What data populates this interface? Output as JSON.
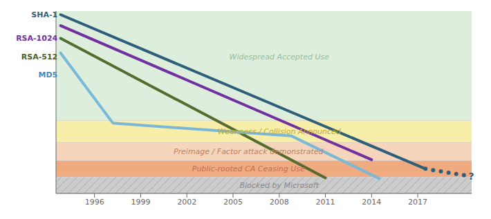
{
  "chart_data": {
    "type": "line",
    "xlim": [
      1993.5,
      2020.5
    ],
    "xticks": [
      1996,
      1999,
      2002,
      2005,
      2008,
      2011,
      2014,
      2017
    ],
    "ylim": [
      0,
      10.0
    ],
    "yticks": [],
    "tick_labels": "x",
    "grid": false,
    "bands": [
      {
        "label": "Widespread Accepted Use",
        "ymin": 4.0,
        "ymax": 10.0,
        "color": "#ddeedd",
        "x": 2008,
        "y": 7.5,
        "label_color": "#99bb99",
        "hatch": false
      },
      {
        "label": "Weakness / Collision Announced",
        "ymin": 2.8,
        "ymax": 4.0,
        "color": "#f7eeaa",
        "x": 2008,
        "y": 3.4,
        "label_color": "#c0a830",
        "hatch": false
      },
      {
        "label": "Preimage / Factor attack demonstrated",
        "ymin": 1.8,
        "ymax": 2.8,
        "color": "#f5d5bb",
        "x": 2006,
        "y": 2.28,
        "label_color": "#c08060",
        "hatch": false
      },
      {
        "label": "Public-rooted CA Ceasing Use",
        "ymin": 0.9,
        "ymax": 1.8,
        "color": "#f0aa80",
        "x": 2006,
        "y": 1.33,
        "label_color": "#c07050",
        "hatch": false
      },
      {
        "label": "Blocked by Microsoft",
        "ymin": 0.0,
        "ymax": 0.9,
        "color": "#cccccc",
        "x": 2008,
        "y": 0.42,
        "label_color": "#888888",
        "hatch": true
      }
    ],
    "series": [
      {
        "name": "SHA-1",
        "color": "#2e5f7a",
        "x": [
          1993.8,
          2017.5
        ],
        "values": [
          9.8,
          1.35
        ],
        "extension_x": [
          2017.5,
          2018.0,
          2018.5,
          2019.0,
          2019.5,
          2020.0
        ],
        "extension_values": [
          1.35,
          1.28,
          1.21,
          1.14,
          1.07,
          1.0
        ],
        "label_x": 1993.6,
        "label_y": 9.8,
        "label_color": "#2e5f7a"
      },
      {
        "name": "RSA-1024",
        "color": "#7030a0",
        "x": [
          1993.8,
          2014.0
        ],
        "values": [
          9.2,
          1.85
        ],
        "label_x": 1993.6,
        "label_y": 8.5,
        "label_color": "#7030a0"
      },
      {
        "name": "RSA-512",
        "color": "#556b2f",
        "x": [
          1993.8,
          2011.0
        ],
        "values": [
          8.5,
          0.85
        ],
        "label_x": 1993.6,
        "label_y": 7.5,
        "label_color": "#4a6020"
      },
      {
        "name": "MD5",
        "color": "#7ab8d8",
        "x": [
          1993.8,
          1997.2,
          2008.8,
          2014.5
        ],
        "values": [
          7.7,
          3.85,
          3.15,
          0.82
        ],
        "label_x": 1993.6,
        "label_y": 6.5,
        "label_color": "#4a88b8"
      }
    ],
    "annotations": [
      {
        "text": "?",
        "x": 2020.3,
        "y": 0.95,
        "color": "#2e5f7a"
      }
    ]
  }
}
